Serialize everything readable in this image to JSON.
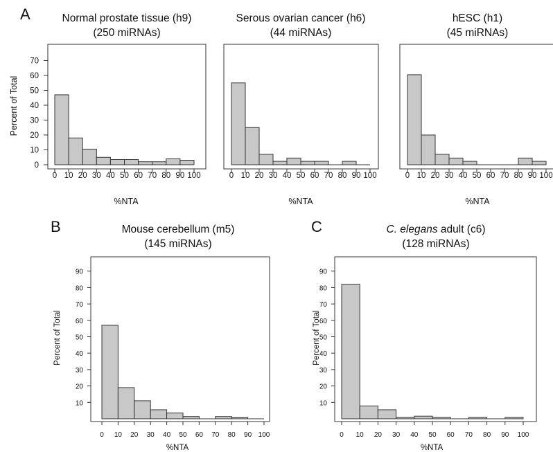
{
  "panels": {
    "A": "A",
    "B": "B",
    "C": "C"
  },
  "chart_data": [
    {
      "id": "h9",
      "type": "bar",
      "title": "Normal prostate tissue (h9)",
      "subtitle": "(250 miRNAs)",
      "xlabel": "%NTA",
      "ylabel": "Percent of Total",
      "x_ticks": [
        "0",
        "10",
        "20",
        "30",
        "40",
        "50",
        "60",
        "70",
        "80",
        "90",
        "100"
      ],
      "y_ticks": [
        "0",
        "10",
        "20",
        "30",
        "40",
        "50",
        "60",
        "70"
      ],
      "xlim": [
        0,
        100
      ],
      "ylim": [
        0,
        70
      ],
      "bin_edges": [
        0,
        10,
        20,
        30,
        40,
        50,
        60,
        70,
        80,
        90,
        100
      ],
      "values": [
        47,
        18,
        10.5,
        5,
        3.5,
        3.5,
        2,
        2,
        4,
        3
      ],
      "grid": false,
      "bar_color": "#c8c8c8"
    },
    {
      "id": "h6",
      "type": "bar",
      "title": "Serous ovarian cancer (h6)",
      "subtitle": "(44 miRNAs)",
      "xlabel": "%NTA",
      "ylabel": "",
      "x_ticks": [
        "0",
        "10",
        "20",
        "30",
        "40",
        "50",
        "60",
        "70",
        "80",
        "90",
        "100"
      ],
      "y_ticks": [],
      "xlim": [
        0,
        100
      ],
      "ylim": [
        0,
        70
      ],
      "bin_edges": [
        0,
        10,
        20,
        30,
        40,
        50,
        60,
        70,
        80,
        90,
        100
      ],
      "values": [
        55,
        25,
        7,
        2.3,
        4.5,
        2.3,
        2.3,
        0,
        2.3,
        0
      ],
      "grid": false,
      "bar_color": "#c8c8c8"
    },
    {
      "id": "h1",
      "type": "bar",
      "title": "hESC (h1)",
      "subtitle": "(45 miRNAs)",
      "xlabel": "%NTA",
      "ylabel": "",
      "x_ticks": [
        "0",
        "10",
        "20",
        "30",
        "40",
        "50",
        "60",
        "70",
        "80",
        "90",
        "100"
      ],
      "y_ticks": [],
      "xlim": [
        0,
        100
      ],
      "ylim": [
        0,
        70
      ],
      "bin_edges": [
        0,
        10,
        20,
        30,
        40,
        50,
        60,
        70,
        80,
        90,
        100
      ],
      "values": [
        60.5,
        20,
        7,
        4.5,
        2.3,
        0,
        0,
        0,
        4.5,
        2.3
      ],
      "grid": false,
      "bar_color": "#c8c8c8"
    },
    {
      "id": "m5",
      "type": "bar",
      "title": "Mouse cerebellum (m5)",
      "subtitle": "(145 miRNAs)",
      "xlabel": "%NTA",
      "ylabel": "Percent of Total",
      "x_ticks": [
        "0",
        "10",
        "20",
        "30",
        "40",
        "50",
        "60",
        "70",
        "80",
        "90",
        "100"
      ],
      "y_ticks": [
        "10",
        "20",
        "30",
        "40",
        "50",
        "60",
        "70",
        "80",
        "90"
      ],
      "xlim": [
        0,
        100
      ],
      "ylim": [
        0,
        95
      ],
      "bin_edges": [
        0,
        10,
        20,
        30,
        40,
        50,
        60,
        70,
        80,
        90,
        100
      ],
      "values": [
        57,
        19,
        11,
        5.5,
        3.5,
        1.4,
        0,
        1.4,
        0.7,
        0
      ],
      "grid": false,
      "bar_color": "#c8c8c8"
    },
    {
      "id": "c6",
      "type": "bar",
      "title_italic": "C. elegans",
      "title": "adult (c6)",
      "subtitle": "(128 miRNAs)",
      "xlabel": "%NTA",
      "ylabel": "Percent of Total",
      "x_ticks": [
        "0",
        "10",
        "20",
        "30",
        "40",
        "50",
        "60",
        "70",
        "80",
        "90",
        "100"
      ],
      "y_ticks": [
        "10",
        "20",
        "30",
        "40",
        "50",
        "60",
        "70",
        "80",
        "90"
      ],
      "xlim": [
        0,
        100
      ],
      "ylim": [
        0,
        95
      ],
      "bin_edges": [
        0,
        10,
        20,
        30,
        40,
        50,
        60,
        70,
        80,
        90,
        100
      ],
      "values": [
        82,
        7.8,
        5.5,
        0.8,
        1.6,
        0.8,
        0,
        0.8,
        0,
        0.8
      ],
      "grid": false,
      "bar_color": "#c8c8c8"
    }
  ]
}
